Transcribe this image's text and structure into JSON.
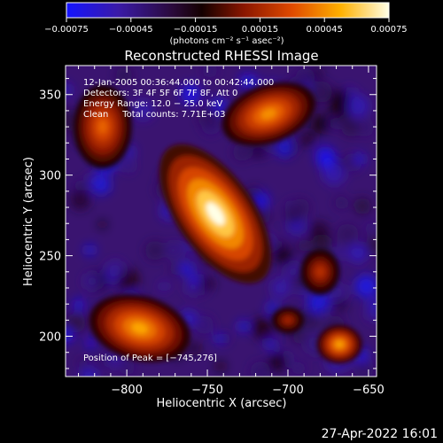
{
  "chart_data": {
    "type": "heatmap",
    "title": "Reconstructed RHESSI Image",
    "xlabel": "Heliocentric X (arcsec)",
    "ylabel": "Heliocentric Y (arcsec)",
    "xlim": [
      -838,
      -645
    ],
    "ylim": [
      175,
      368
    ],
    "x_ticks": [
      -800,
      -750,
      -700,
      -650
    ],
    "x_tick_labels": [
      "−800",
      "−750",
      "−700",
      "−650"
    ],
    "y_ticks": [
      200,
      250,
      300,
      350
    ],
    "y_tick_labels": [
      "200",
      "250",
      "300",
      "350"
    ],
    "colorbar": {
      "min": -0.00075,
      "max": 0.00075,
      "ticks": [
        -0.00075,
        -0.00045,
        -0.00015,
        0.00015,
        0.00045,
        0.00075
      ],
      "tick_labels": [
        "−0.00075",
        "−0.00045",
        "−0.00015",
        "0.00015",
        "0.00045",
        "0.00075"
      ],
      "unit_label": "(photons cm⁻² s⁻¹ asec⁻²)"
    },
    "annotations": [
      "12-Jan-2005 00:36:44.000 to 00:42:44.000",
      "Detectors: 3F 4F 5F 6F 7F 8F, Att 0",
      "Energy Range: 12.0 − 25.0 keV",
      "Clean     Total counts: 7.71E+03"
    ],
    "peak_label": "Position of Peak = [−745,276]",
    "peak": [
      -745,
      276
    ],
    "sources": [
      {
        "x": -745,
        "y": 276,
        "rx": 24,
        "ry": 50,
        "rotate": -35,
        "intensity": 0.00075
      },
      {
        "x": -712,
        "y": 338,
        "rx": 30,
        "ry": 18,
        "rotate": -20,
        "intensity": 0.00045
      },
      {
        "x": -792,
        "y": 205,
        "rx": 32,
        "ry": 20,
        "rotate": 15,
        "intensity": 0.0005
      },
      {
        "x": -668,
        "y": 195,
        "rx": 14,
        "ry": 12,
        "rotate": 0,
        "intensity": 0.0005
      },
      {
        "x": -815,
        "y": 330,
        "rx": 18,
        "ry": 26,
        "rotate": 0,
        "intensity": 0.00035
      },
      {
        "x": -680,
        "y": 240,
        "rx": 12,
        "ry": 14,
        "rotate": 0,
        "intensity": 0.0002
      },
      {
        "x": -700,
        "y": 210,
        "rx": 10,
        "ry": 8,
        "rotate": 0,
        "intensity": 0.00015
      }
    ],
    "grid": false,
    "colormap": "rainbow-hot"
  },
  "footer": {
    "timestamp": "27-Apr-2022 16:01"
  }
}
